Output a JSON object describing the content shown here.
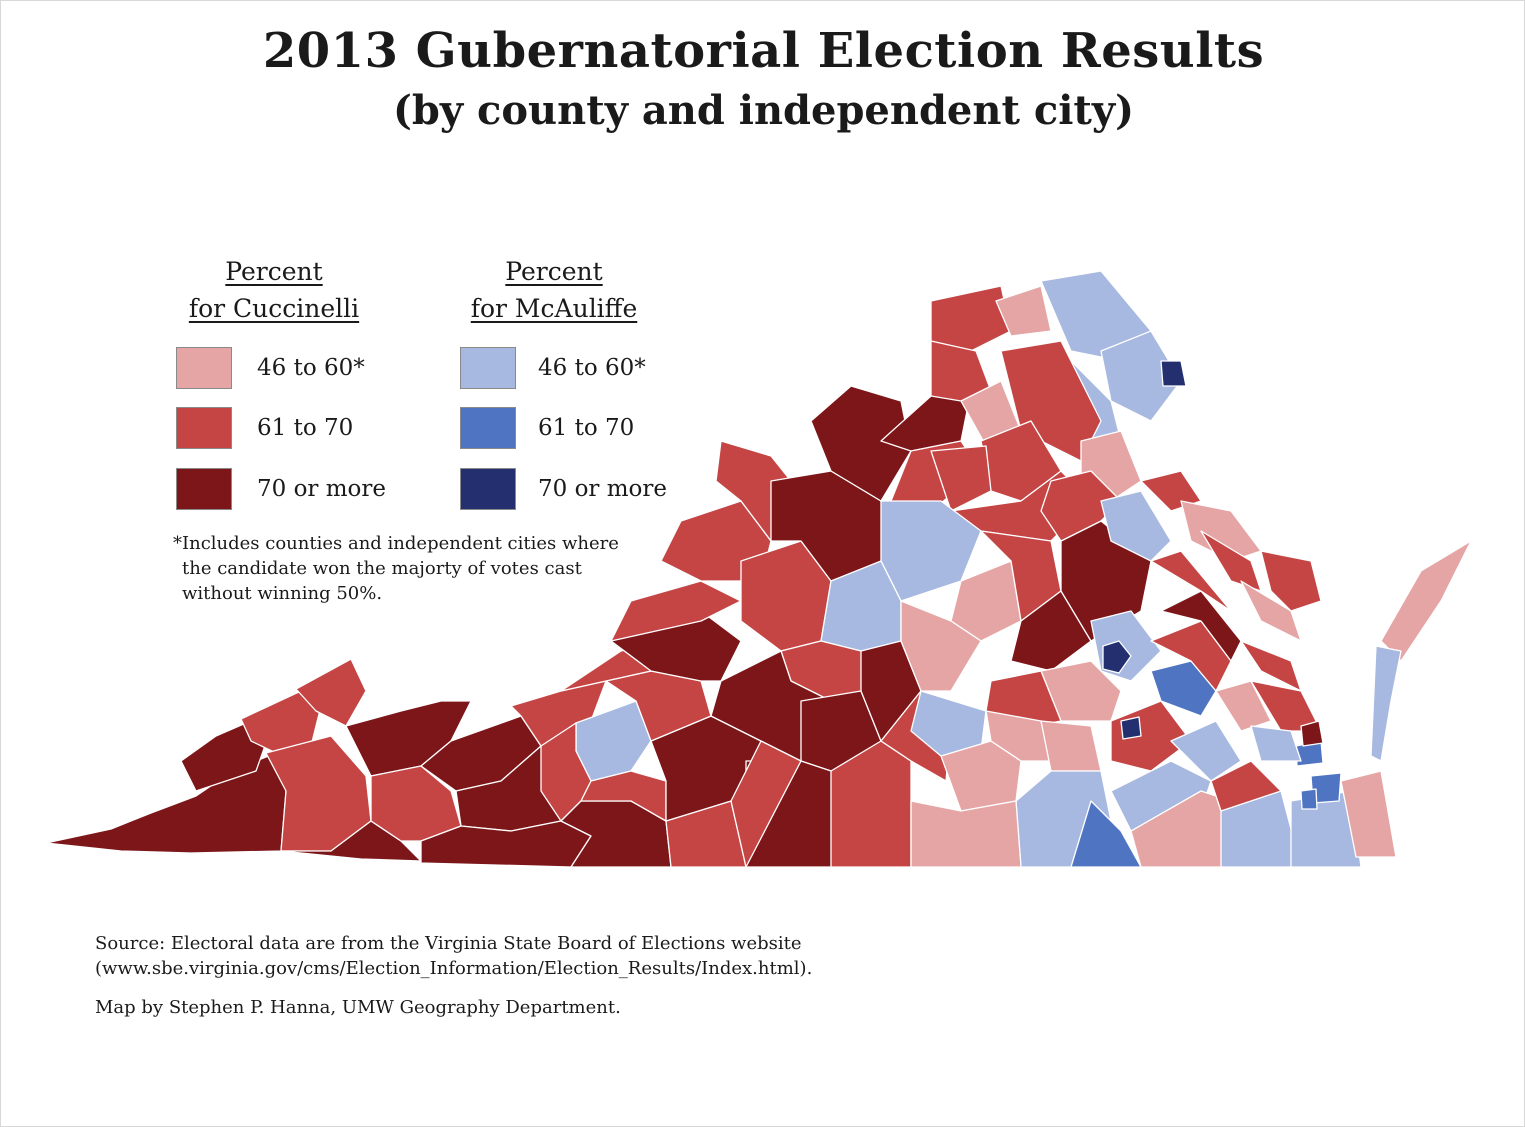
{
  "title": "2013 Gubernatorial Election Results",
  "subtitle": "(by county and independent city)",
  "legend": {
    "cuccinelli": {
      "heading_line1": "Percent",
      "heading_line2": "for Cuccinelli",
      "classes": [
        {
          "label": "46 to 60*",
          "color": "#e6a5a5"
        },
        {
          "label": "61 to 70",
          "color": "#c54545"
        },
        {
          "label": "70 or more",
          "color": "#7d1619"
        }
      ]
    },
    "mcauliffe": {
      "heading_line1": "Percent",
      "heading_line2": "for McAuliffe",
      "classes": [
        {
          "label": "46 to 60*",
          "color": "#a7b9e0"
        },
        {
          "label": "61 to 70",
          "color": "#4f74c2"
        },
        {
          "label": "70 or more",
          "color": "#232f6f"
        }
      ]
    },
    "footnote_line1": "*Includes counties and independent cities where",
    "footnote_line2": "the candidate won the majorty of votes cast",
    "footnote_line3": "without winning 50%."
  },
  "source_line1": "Source:  Electoral data are from the Virginia State Board of Elections  website",
  "source_line2": "(www.sbe.virginia.gov/cms/Election_Information/Election_Results/Index.html).",
  "credit": "Map by Stephen P. Hanna, UMW Geography Department."
}
